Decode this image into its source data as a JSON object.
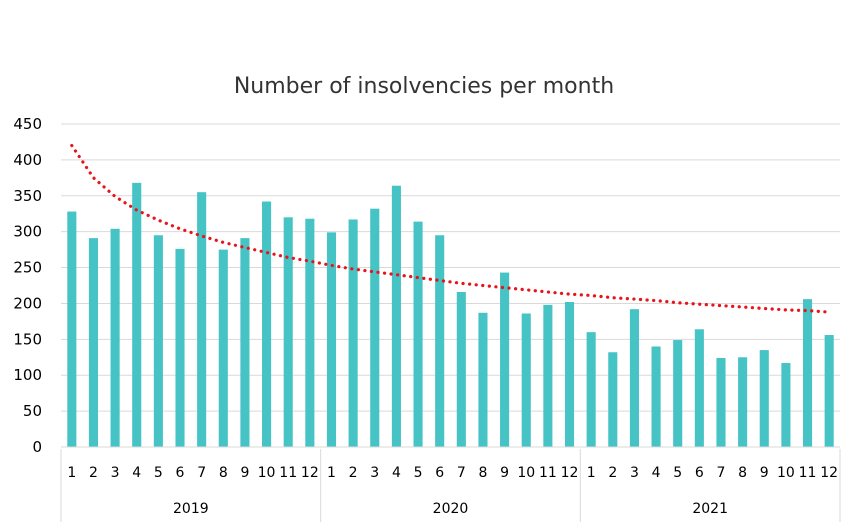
{
  "chart_data": {
    "type": "bar",
    "title": "Number of insolvencies per month",
    "xlabel": "",
    "ylabel": "",
    "ylim": [
      0,
      450
    ],
    "yticks": [
      0,
      50,
      100,
      150,
      200,
      250,
      300,
      350,
      400,
      450
    ],
    "grid": true,
    "legend": "none",
    "groups": [
      {
        "label": "2019",
        "categories": [
          "1",
          "2",
          "3",
          "4",
          "5",
          "6",
          "7",
          "8",
          "9",
          "10",
          "11",
          "12"
        ]
      },
      {
        "label": "2020",
        "categories": [
          "1",
          "2",
          "3",
          "4",
          "5",
          "6",
          "7",
          "8",
          "9",
          "10",
          "11",
          "12"
        ]
      },
      {
        "label": "2021",
        "categories": [
          "1",
          "2",
          "3",
          "4",
          "5",
          "6",
          "7",
          "8",
          "9",
          "10",
          "11",
          "12"
        ]
      }
    ],
    "series": [
      {
        "type": "bar",
        "color": "#45C3C5",
        "values": [
          328,
          291,
          304,
          368,
          295,
          276,
          355,
          275,
          291,
          342,
          320,
          318,
          299,
          317,
          332,
          364,
          314,
          295,
          216,
          187,
          243,
          186,
          198,
          202,
          160,
          132,
          192,
          140,
          149,
          164,
          124,
          125,
          135,
          117,
          206,
          156
        ]
      },
      {
        "type": "trendline",
        "style": "dotted",
        "fit": "logarithmic",
        "color": "#E8141B",
        "values": [
          420,
          375,
          349,
          330,
          316,
          304,
          294,
          285,
          278,
          271,
          264,
          259,
          253,
          248,
          244,
          240,
          236,
          232,
          228,
          225,
          222,
          219,
          216,
          213,
          211,
          208,
          206,
          204,
          201,
          199,
          197,
          195,
          193,
          191,
          190,
          188
        ]
      }
    ]
  }
}
